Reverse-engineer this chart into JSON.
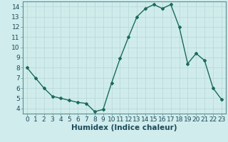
{
  "x": [
    0,
    1,
    2,
    3,
    4,
    5,
    6,
    7,
    8,
    9,
    10,
    11,
    12,
    13,
    14,
    15,
    16,
    17,
    18,
    19,
    20,
    21,
    22,
    23
  ],
  "y": [
    8.0,
    7.0,
    6.0,
    5.2,
    5.0,
    4.8,
    4.6,
    4.5,
    3.7,
    3.9,
    6.5,
    8.9,
    11.0,
    13.0,
    13.8,
    14.2,
    13.8,
    14.2,
    12.0,
    8.4,
    9.4,
    8.7,
    6.0,
    4.9
  ],
  "line_color": "#1a6b5a",
  "marker": "D",
  "marker_size": 2,
  "bg_color": "#d0ecec",
  "grid_color": "#b8d8d8",
  "grid_color_minor": "#c8e8e0",
  "xlabel": "Humidex (Indice chaleur)",
  "xlabel_fontsize": 7.5,
  "ylim": [
    3.5,
    14.5
  ],
  "xlim": [
    -0.5,
    23.5
  ],
  "yticks": [
    4,
    5,
    6,
    7,
    8,
    9,
    10,
    11,
    12,
    13,
    14
  ],
  "xticks": [
    0,
    1,
    2,
    3,
    4,
    5,
    6,
    7,
    8,
    9,
    10,
    11,
    12,
    13,
    14,
    15,
    16,
    17,
    18,
    19,
    20,
    21,
    22,
    23
  ],
  "tick_fontsize": 6.5,
  "spine_color": "#5a9090",
  "xlabel_color": "#1a4a5a"
}
